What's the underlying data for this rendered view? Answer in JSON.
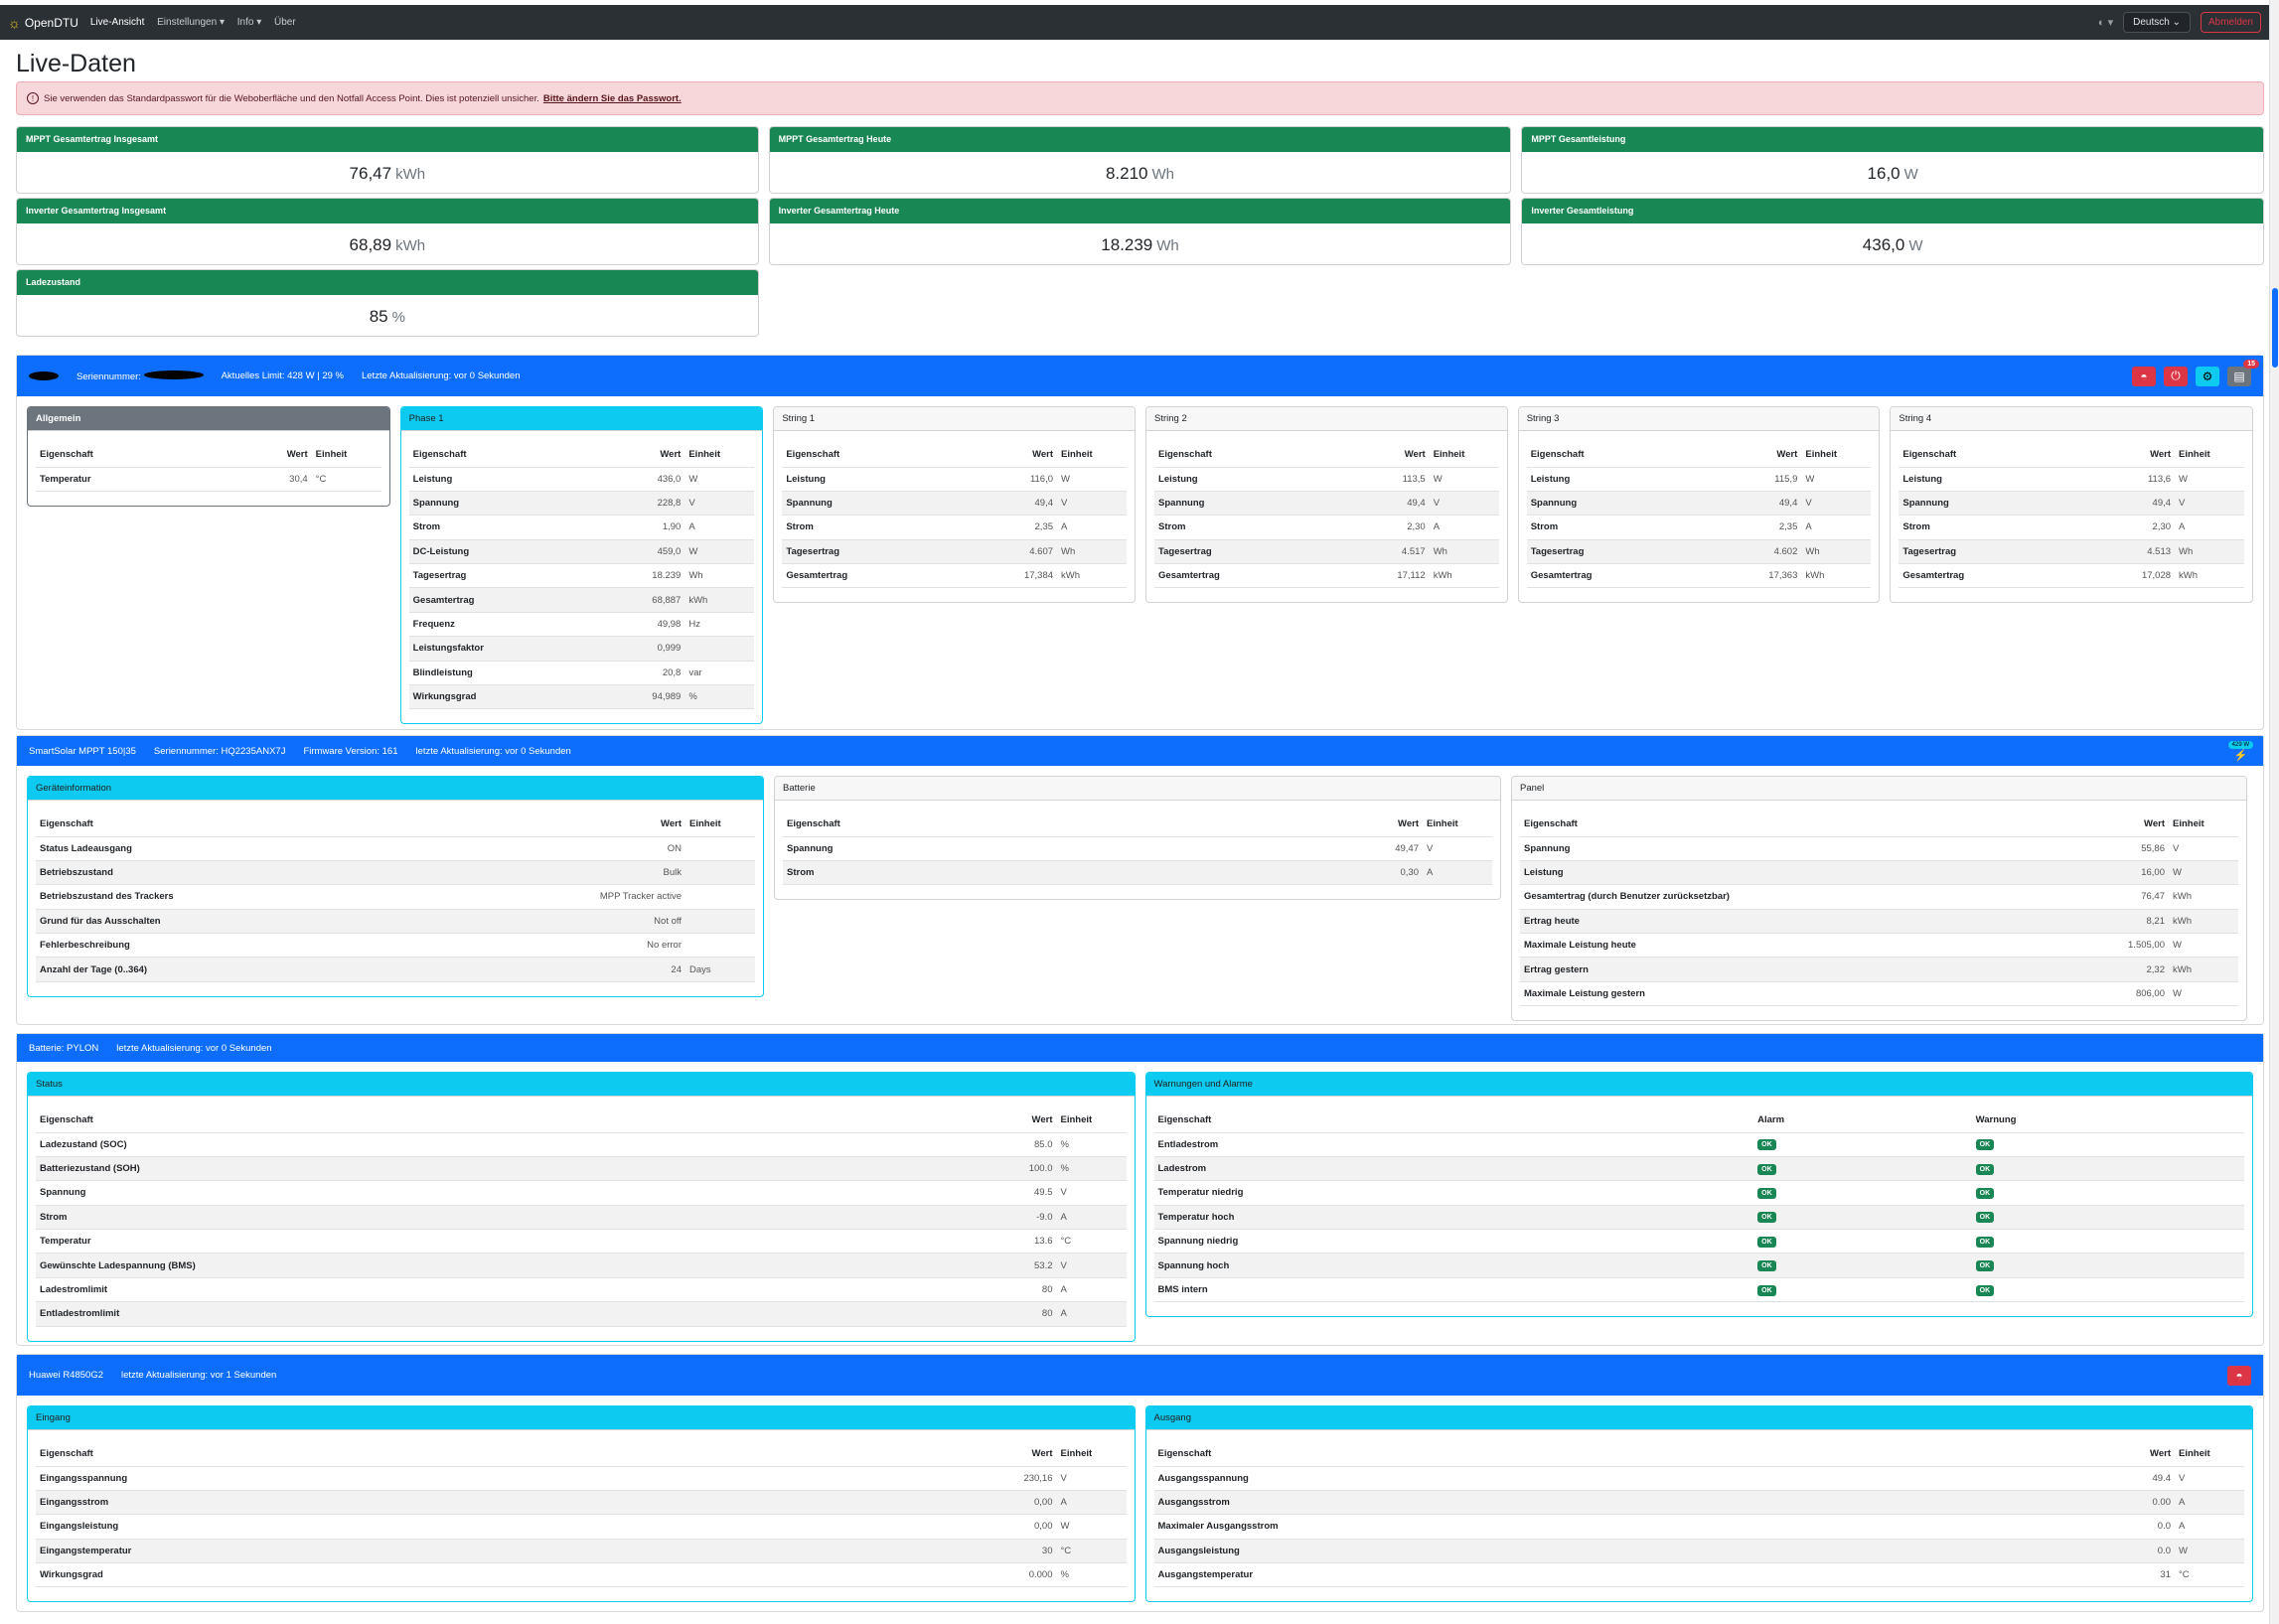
{
  "nav": {
    "brand": "OpenDTU",
    "items": [
      {
        "label": "Live-Ansicht",
        "active": true
      },
      {
        "label": "Einstellungen ▾"
      },
      {
        "label": "Info ▾"
      },
      {
        "label": "Über"
      }
    ],
    "theme": "◐ ▾",
    "language": "Deutsch",
    "logout": "Abmelden"
  },
  "page_title": "Live-Daten",
  "alert": {
    "text": "Sie verwenden das Standardpasswort für die Weboberfläche und den Notfall Access Point. Dies ist potenziell unsicher.",
    "link": "Bitte ändern Sie das Passwort."
  },
  "summary": [
    {
      "title": "MPPT Gesamtertrag Insgesamt",
      "value": "76,47",
      "unit": "kWh"
    },
    {
      "title": "MPPT Gesamtertrag Heute",
      "value": "8.210",
      "unit": "Wh"
    },
    {
      "title": "MPPT Gesamtleistung",
      "value": "16,0",
      "unit": "W"
    },
    {
      "title": "Inverter Gesamtertrag Insgesamt",
      "value": "68,89",
      "unit": "kWh"
    },
    {
      "title": "Inverter Gesamtertrag Heute",
      "value": "18.239",
      "unit": "Wh"
    },
    {
      "title": "Inverter Gesamtleistung",
      "value": "436,0",
      "unit": "W"
    },
    {
      "title": "Ladezustand",
      "value": "85",
      "unit": "%"
    }
  ],
  "inverter": {
    "serial_label": "Seriennummer:",
    "limit": "Aktuelles Limit: 428 W | 29 %",
    "updated": "Letzte Aktualisierung: vor 0 Sekunden",
    "events_badge": "15",
    "cards": [
      {
        "title": "Allgemein",
        "style": "gray",
        "cols": [
          "Eigenschaft",
          "Wert",
          "Einheit"
        ],
        "rows": [
          [
            "Temperatur",
            "30,4",
            "°C"
          ]
        ]
      },
      {
        "title": "Phase 1",
        "style": "cyan",
        "cols": [
          "Eigenschaft",
          "Wert",
          "Einheit"
        ],
        "rows": [
          [
            "Leistung",
            "436,0",
            "W"
          ],
          [
            "Spannung",
            "228,8",
            "V"
          ],
          [
            "Strom",
            "1,90",
            "A"
          ],
          [
            "DC-Leistung",
            "459,0",
            "W"
          ],
          [
            "Tagesertrag",
            "18.239",
            "Wh"
          ],
          [
            "Gesamtertrag",
            "68,887",
            "kWh"
          ],
          [
            "Frequenz",
            "49,98",
            "Hz"
          ],
          [
            "Leistungsfaktor",
            "0,999",
            ""
          ],
          [
            "Blindleistung",
            "20,8",
            "var"
          ],
          [
            "Wirkungsgrad",
            "94,989",
            "%"
          ]
        ]
      },
      {
        "title": "String 1",
        "style": "light",
        "cols": [
          "Eigenschaft",
          "Wert",
          "Einheit"
        ],
        "rows": [
          [
            "Leistung",
            "116,0",
            "W"
          ],
          [
            "Spannung",
            "49,4",
            "V"
          ],
          [
            "Strom",
            "2,35",
            "A"
          ],
          [
            "Tagesertrag",
            "4.607",
            "Wh"
          ],
          [
            "Gesamtertrag",
            "17,384",
            "kWh"
          ]
        ]
      },
      {
        "title": "String 2",
        "style": "light",
        "cols": [
          "Eigenschaft",
          "Wert",
          "Einheit"
        ],
        "rows": [
          [
            "Leistung",
            "113,5",
            "W"
          ],
          [
            "Spannung",
            "49,4",
            "V"
          ],
          [
            "Strom",
            "2,30",
            "A"
          ],
          [
            "Tagesertrag",
            "4.517",
            "Wh"
          ],
          [
            "Gesamtertrag",
            "17,112",
            "kWh"
          ]
        ]
      },
      {
        "title": "String 3",
        "style": "light",
        "cols": [
          "Eigenschaft",
          "Wert",
          "Einheit"
        ],
        "rows": [
          [
            "Leistung",
            "115,9",
            "W"
          ],
          [
            "Spannung",
            "49,4",
            "V"
          ],
          [
            "Strom",
            "2,35",
            "A"
          ],
          [
            "Tagesertrag",
            "4.602",
            "Wh"
          ],
          [
            "Gesamtertrag",
            "17,363",
            "kWh"
          ]
        ]
      },
      {
        "title": "String 4",
        "style": "light",
        "cols": [
          "Eigenschaft",
          "Wert",
          "Einheit"
        ],
        "rows": [
          [
            "Leistung",
            "113,6",
            "W"
          ],
          [
            "Spannung",
            "49,4",
            "V"
          ],
          [
            "Strom",
            "2,30",
            "A"
          ],
          [
            "Tagesertrag",
            "4.513",
            "Wh"
          ],
          [
            "Gesamtertrag",
            "17,028",
            "kWh"
          ]
        ]
      }
    ]
  },
  "mppt": {
    "header": [
      "SmartSolar MPPT 150|35",
      "Seriennummer: HQ2235ANX7J",
      "Firmware Version: 161",
      "letzte Aktualisierung: vor 0 Sekunden"
    ],
    "power_badge": "429 W",
    "cards": [
      {
        "title": "Geräteinformation",
        "style": "cyan",
        "cols": [
          "Eigenschaft",
          "Wert",
          "Einheit"
        ],
        "rows": [
          [
            "Status Ladeausgang",
            "ON",
            ""
          ],
          [
            "Betriebszustand",
            "Bulk",
            ""
          ],
          [
            "Betriebszustand des Trackers",
            "MPP Tracker active",
            ""
          ],
          [
            "Grund für das Ausschalten",
            "Not off",
            ""
          ],
          [
            "Fehlerbeschreibung",
            "No error",
            ""
          ],
          [
            "Anzahl der Tage (0..364)",
            "24",
            "Days"
          ]
        ]
      },
      {
        "title": "Batterie",
        "style": "light",
        "cols": [
          "Eigenschaft",
          "Wert",
          "Einheit"
        ],
        "rows": [
          [
            "Spannung",
            "49,47",
            "V"
          ],
          [
            "Strom",
            "0,30",
            "A"
          ]
        ]
      },
      {
        "title": "Panel",
        "style": "light",
        "cols": [
          "Eigenschaft",
          "Wert",
          "Einheit"
        ],
        "rows": [
          [
            "Spannung",
            "55,86",
            "V"
          ],
          [
            "Leistung",
            "16,00",
            "W"
          ],
          [
            "Gesamtertrag (durch Benutzer zurücksetzbar)",
            "76,47",
            "kWh"
          ],
          [
            "Ertrag heute",
            "8,21",
            "kWh"
          ],
          [
            "Maximale Leistung heute",
            "1.505,00",
            "W"
          ],
          [
            "Ertrag gestern",
            "2,32",
            "kWh"
          ],
          [
            "Maximale Leistung gestern",
            "806,00",
            "W"
          ]
        ]
      }
    ]
  },
  "battery": {
    "header": [
      "Batterie: PYLON",
      "letzte Aktualisierung: vor 0 Sekunden"
    ],
    "cards": [
      {
        "title": "Status",
        "style": "cyan",
        "cols": [
          "Eigenschaft",
          "Wert",
          "Einheit"
        ],
        "rows": [
          [
            "Ladezustand (SOC)",
            "85.0",
            "%"
          ],
          [
            "Batteriezustand (SOH)",
            "100.0",
            "%"
          ],
          [
            "Spannung",
            "49.5",
            "V"
          ],
          [
            "Strom",
            "-9.0",
            "A"
          ],
          [
            "Temperatur",
            "13.6",
            "°C"
          ],
          [
            "Gewünschte Ladespannung (BMS)",
            "53.2",
            "V"
          ],
          [
            "Ladestromlimit",
            "80",
            "A"
          ],
          [
            "Entladestromlimit",
            "80",
            "A"
          ]
        ]
      },
      {
        "title": "Warnungen und Alarme",
        "style": "cyan",
        "alarm": true,
        "cols": [
          "Eigenschaft",
          "Alarm",
          "Warnung"
        ],
        "rows": [
          [
            "Entladestrom",
            "OK",
            "OK"
          ],
          [
            "Ladestrom",
            "OK",
            "OK"
          ],
          [
            "Temperatur niedrig",
            "OK",
            "OK"
          ],
          [
            "Temperatur hoch",
            "OK",
            "OK"
          ],
          [
            "Spannung niedrig",
            "OK",
            "OK"
          ],
          [
            "Spannung hoch",
            "OK",
            "OK"
          ],
          [
            "BMS intern",
            "OK",
            "OK"
          ]
        ]
      }
    ]
  },
  "charger": {
    "header": [
      "Huawei R4850G2",
      "letzte Aktualisierung: vor 1 Sekunden"
    ],
    "cards": [
      {
        "title": "Eingang",
        "style": "cyan",
        "cols": [
          "Eigenschaft",
          "Wert",
          "Einheit"
        ],
        "rows": [
          [
            "Eingangsspannung",
            "230,16",
            "V"
          ],
          [
            "Eingangsstrom",
            "0,00",
            "A"
          ],
          [
            "Eingangsleistung",
            "0,00",
            "W"
          ],
          [
            "Eingangstemperatur",
            "30",
            "°C"
          ],
          [
            "Wirkungsgrad",
            "0.000",
            "%"
          ]
        ]
      },
      {
        "title": "Ausgang",
        "style": "cyan",
        "cols": [
          "Eigenschaft",
          "Wert",
          "Einheit"
        ],
        "rows": [
          [
            "Ausgangsspannung",
            "49.4",
            "V"
          ],
          [
            "Ausgangsstrom",
            "0.00",
            "A"
          ],
          [
            "Maximaler Ausgangsstrom",
            "0.0",
            "A"
          ],
          [
            "Ausgangsleistung",
            "0.0",
            "W"
          ],
          [
            "Ausgangstemperatur",
            "31",
            "°C"
          ]
        ]
      }
    ]
  },
  "colors": {
    "navbar": "#2b3035",
    "primary": "#0d6efd",
    "success": "#198754",
    "info": "#0dcaf0",
    "danger": "#dc3545",
    "secondary": "#6c757d"
  }
}
